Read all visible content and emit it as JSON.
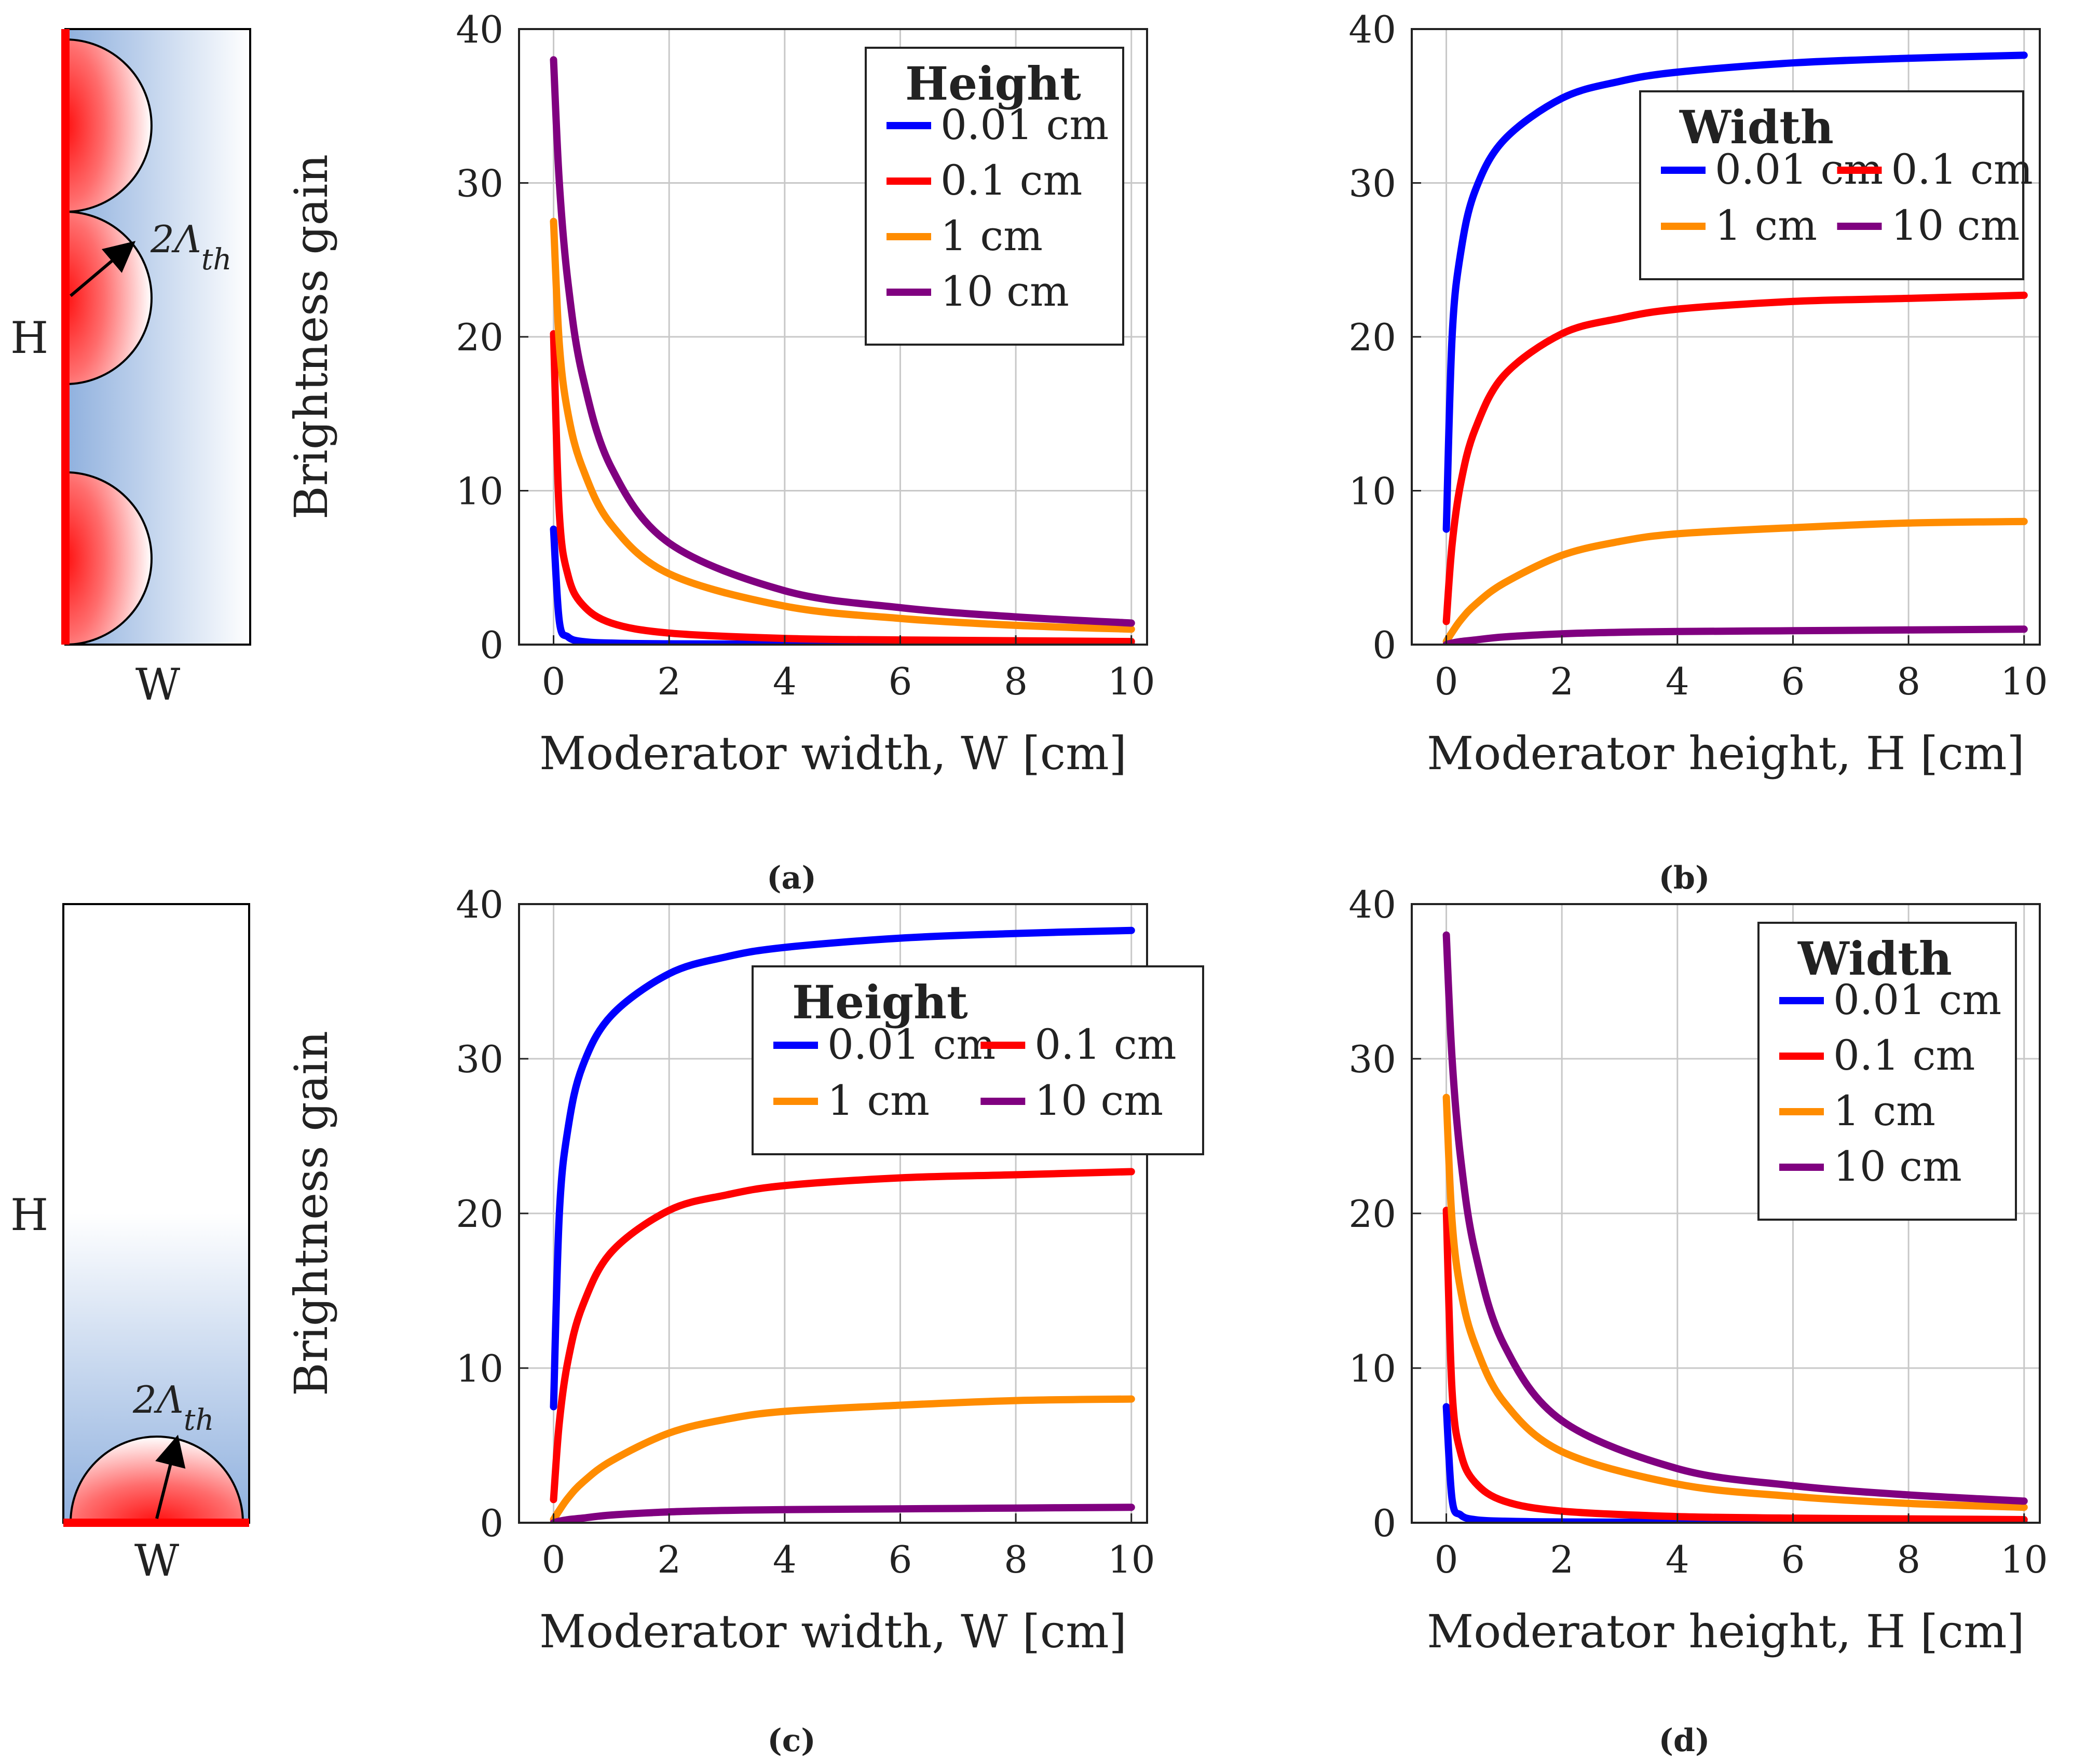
{
  "chart_data": [
    {
      "type": "line",
      "panel": "a",
      "caption": "(a)",
      "xlabel": "Moderator width, W [cm]",
      "ylabel": "Brightness gain",
      "xlim": [
        0,
        10
      ],
      "ylim": [
        0,
        40
      ],
      "xticks": [
        "0",
        "2",
        "4",
        "6",
        "8",
        "10"
      ],
      "yticks": [
        "0",
        "10",
        "20",
        "30",
        "40"
      ],
      "grid": true,
      "legend": {
        "title": "Height",
        "position": "top-right",
        "columns": 1
      },
      "series": [
        {
          "name": "0.01 cm",
          "color": "#0000ff",
          "x": [
            0,
            0.1,
            0.25,
            0.5,
            1,
            2,
            4,
            6,
            8,
            10
          ],
          "y": [
            7.5,
            1.5,
            0.5,
            0.2,
            0.1,
            0.05,
            0.03,
            0.02,
            0.01,
            0.01
          ]
        },
        {
          "name": "0.1 cm",
          "color": "#ff0000",
          "x": [
            0,
            0.1,
            0.25,
            0.5,
            1,
            2,
            4,
            6,
            8,
            10
          ],
          "y": [
            20.2,
            8.5,
            4.5,
            2.6,
            1.4,
            0.75,
            0.4,
            0.3,
            0.25,
            0.2
          ]
        },
        {
          "name": "1 cm",
          "color": "#ff8c00",
          "x": [
            0,
            0.1,
            0.25,
            0.5,
            1,
            2,
            4,
            6,
            8,
            10
          ],
          "y": [
            27.5,
            19.5,
            15.0,
            11.5,
            7.8,
            4.6,
            2.5,
            1.7,
            1.25,
            1.0
          ]
        },
        {
          "name": "10 cm",
          "color": "#800080",
          "x": [
            0,
            0.1,
            0.25,
            0.5,
            1,
            2,
            4,
            6,
            8,
            10
          ],
          "y": [
            38.0,
            30.0,
            23.5,
            17.5,
            11.5,
            6.6,
            3.5,
            2.4,
            1.8,
            1.4
          ]
        }
      ]
    },
    {
      "type": "line",
      "panel": "b",
      "caption": "(b)",
      "xlabel": "Moderator height, H [cm]",
      "ylabel": "",
      "xlim": [
        0,
        10
      ],
      "ylim": [
        0,
        40
      ],
      "xticks": [
        "0",
        "2",
        "4",
        "6",
        "8",
        "10"
      ],
      "yticks": [
        "0",
        "10",
        "20",
        "30",
        "40"
      ],
      "grid": true,
      "legend": {
        "title": "Width",
        "position": "top-right",
        "columns": 2
      },
      "series": [
        {
          "name": "0.01 cm",
          "color": "#0000ff",
          "x": [
            0,
            0.1,
            0.25,
            0.5,
            1,
            2,
            3,
            4,
            6,
            8,
            10
          ],
          "y": [
            7.5,
            20.0,
            25.5,
            29.5,
            32.8,
            35.5,
            36.6,
            37.2,
            37.8,
            38.1,
            38.3
          ]
        },
        {
          "name": "0.1 cm",
          "color": "#ff0000",
          "x": [
            0,
            0.1,
            0.25,
            0.5,
            1,
            2,
            3,
            4,
            6,
            8,
            10
          ],
          "y": [
            1.5,
            6.5,
            10.5,
            14.0,
            17.5,
            20.2,
            21.2,
            21.8,
            22.3,
            22.5,
            22.7
          ]
        },
        {
          "name": "1 cm",
          "color": "#ff8c00",
          "x": [
            0,
            0.1,
            0.25,
            0.5,
            1,
            2,
            3,
            4,
            6,
            8,
            10
          ],
          "y": [
            0.2,
            0.8,
            1.6,
            2.6,
            4.0,
            5.8,
            6.7,
            7.2,
            7.6,
            7.9,
            8.0
          ]
        },
        {
          "name": "10 cm",
          "color": "#800080",
          "x": [
            0,
            0.1,
            0.25,
            0.5,
            1,
            2,
            3,
            4,
            6,
            8,
            10
          ],
          "y": [
            0.0,
            0.1,
            0.2,
            0.3,
            0.5,
            0.7,
            0.8,
            0.85,
            0.9,
            0.95,
            1.0
          ]
        }
      ]
    },
    {
      "type": "line",
      "panel": "c",
      "caption": "(c)",
      "xlabel": "Moderator width, W [cm]",
      "ylabel": "Brightness gain",
      "xlim": [
        0,
        10
      ],
      "ylim": [
        0,
        40
      ],
      "xticks": [
        "0",
        "2",
        "4",
        "6",
        "8",
        "10"
      ],
      "yticks": [
        "0",
        "10",
        "20",
        "30",
        "40"
      ],
      "grid": true,
      "legend": {
        "title": "Height",
        "position": "top-right",
        "columns": 2
      },
      "series": [
        {
          "name": "0.01 cm",
          "color": "#0000ff",
          "x": [
            0,
            0.1,
            0.25,
            0.5,
            1,
            2,
            3,
            4,
            6,
            8,
            10
          ],
          "y": [
            7.5,
            20.0,
            25.5,
            29.5,
            32.8,
            35.5,
            36.6,
            37.2,
            37.8,
            38.1,
            38.3
          ]
        },
        {
          "name": "0.1 cm",
          "color": "#ff0000",
          "x": [
            0,
            0.1,
            0.25,
            0.5,
            1,
            2,
            3,
            4,
            6,
            8,
            10
          ],
          "y": [
            1.5,
            6.5,
            10.5,
            14.0,
            17.5,
            20.2,
            21.2,
            21.8,
            22.3,
            22.5,
            22.7
          ]
        },
        {
          "name": "1 cm",
          "color": "#ff8c00",
          "x": [
            0,
            0.1,
            0.25,
            0.5,
            1,
            2,
            3,
            4,
            6,
            8,
            10
          ],
          "y": [
            0.2,
            0.8,
            1.6,
            2.6,
            4.0,
            5.8,
            6.7,
            7.2,
            7.6,
            7.9,
            8.0
          ]
        },
        {
          "name": "10 cm",
          "color": "#800080",
          "x": [
            0,
            0.1,
            0.25,
            0.5,
            1,
            2,
            3,
            4,
            6,
            8,
            10
          ],
          "y": [
            0.0,
            0.1,
            0.2,
            0.3,
            0.5,
            0.7,
            0.8,
            0.85,
            0.9,
            0.95,
            1.0
          ]
        }
      ]
    },
    {
      "type": "line",
      "panel": "d",
      "caption": "(d)",
      "xlabel": "Moderator height, H [cm]",
      "ylabel": "",
      "xlim": [
        0,
        10
      ],
      "ylim": [
        0,
        40
      ],
      "xticks": [
        "0",
        "2",
        "4",
        "6",
        "8",
        "10"
      ],
      "yticks": [
        "0",
        "10",
        "20",
        "30",
        "40"
      ],
      "grid": true,
      "legend": {
        "title": "Width",
        "position": "top-right",
        "columns": 1
      },
      "series": [
        {
          "name": "0.01 cm",
          "color": "#0000ff",
          "x": [
            0,
            0.1,
            0.25,
            0.5,
            1,
            2,
            4,
            6,
            8,
            10
          ],
          "y": [
            7.5,
            1.5,
            0.5,
            0.2,
            0.1,
            0.05,
            0.03,
            0.02,
            0.01,
            0.01
          ]
        },
        {
          "name": "0.1 cm",
          "color": "#ff0000",
          "x": [
            0,
            0.1,
            0.25,
            0.5,
            1,
            2,
            4,
            6,
            8,
            10
          ],
          "y": [
            20.2,
            8.5,
            4.5,
            2.6,
            1.4,
            0.75,
            0.4,
            0.3,
            0.25,
            0.2
          ]
        },
        {
          "name": "1 cm",
          "color": "#ff8c00",
          "x": [
            0,
            0.1,
            0.25,
            0.5,
            1,
            2,
            4,
            6,
            8,
            10
          ],
          "y": [
            27.5,
            19.5,
            15.0,
            11.5,
            7.8,
            4.6,
            2.5,
            1.7,
            1.25,
            1.0
          ]
        },
        {
          "name": "10 cm",
          "color": "#800080",
          "x": [
            0,
            0.1,
            0.25,
            0.5,
            1,
            2,
            4,
            6,
            8,
            10
          ],
          "y": [
            38.0,
            30.0,
            23.5,
            17.5,
            11.5,
            6.6,
            3.5,
            2.4,
            1.8,
            1.4
          ]
        }
      ]
    }
  ],
  "schematics": [
    {
      "height_label": "H",
      "width_label": "W",
      "radius_label": "2Λ",
      "radius_sub": "th"
    },
    {
      "height_label": "H",
      "width_label": "W",
      "radius_label": "2Λ",
      "radius_sub": "th"
    }
  ],
  "colors": {
    "moderator_gradient_start": "#8fb0de",
    "moderator_gradient_end": "#ffffff",
    "hotspot": "#ff0000",
    "grid": "#c8c8c8",
    "axis": "#222222"
  }
}
